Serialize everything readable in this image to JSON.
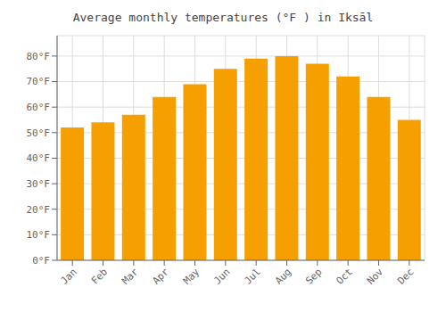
{
  "chart_data": {
    "type": "bar",
    "title": "Average monthly temperatures (°F ) in Iksāl",
    "categories": [
      "Jan",
      "Feb",
      "Mar",
      "Apr",
      "May",
      "Jun",
      "Jul",
      "Aug",
      "Sep",
      "Oct",
      "Nov",
      "Dec"
    ],
    "values": [
      52,
      54,
      57,
      64,
      69,
      75,
      79,
      80,
      77,
      72,
      64,
      55
    ],
    "color": "#F5A000",
    "ylim": [
      0,
      88
    ],
    "yticks": [
      {
        "value": 0,
        "label": "0°F"
      },
      {
        "value": 10,
        "label": "10°F"
      },
      {
        "value": 20,
        "label": "20°F"
      },
      {
        "value": 30,
        "label": "30°F"
      },
      {
        "value": 40,
        "label": "40°F"
      },
      {
        "value": 50,
        "label": "50°F"
      },
      {
        "value": 60,
        "label": "60°F"
      },
      {
        "value": 70,
        "label": "70°F"
      },
      {
        "value": 80,
        "label": "80°F"
      }
    ],
    "grid": true
  }
}
